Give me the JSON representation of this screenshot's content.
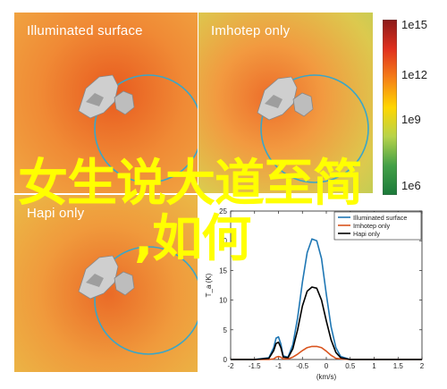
{
  "panels": [
    {
      "title": "Illuminated surface"
    },
    {
      "title": "Imhotep only"
    },
    {
      "title": "Hapi only"
    }
  ],
  "colorbar": {
    "ticks": [
      "1e15",
      "1e12",
      "1e9",
      "1e6"
    ],
    "colors": [
      "#8b1a1a",
      "#e0301e",
      "#f57f17",
      "#ffd600",
      "#b7d34a",
      "#43a047",
      "#1b7a3a"
    ]
  },
  "overlay": {
    "line1": "女生说大道至简",
    "line2": ",如何"
  },
  "chart_data": {
    "type": "line",
    "title": "",
    "xlabel": "(km/s)",
    "ylabel": "T_a (K)",
    "xlim": [
      -2,
      2
    ],
    "ylim": [
      0,
      25
    ],
    "x_ticks": [
      -2,
      -1.5,
      -1,
      -0.5,
      0,
      0.5,
      1,
      1.5,
      2
    ],
    "y_ticks": [
      0,
      5,
      10,
      15,
      20,
      25
    ],
    "legend_position": "top-right",
    "x": [
      -2,
      -1.5,
      -1.2,
      -1.1,
      -1.05,
      -1.0,
      -0.95,
      -0.9,
      -0.8,
      -0.7,
      -0.6,
      -0.5,
      -0.4,
      -0.3,
      -0.2,
      -0.1,
      0,
      0.1,
      0.2,
      0.3,
      0.5,
      1,
      1.5,
      2
    ],
    "series": [
      {
        "name": "Illuminated surface",
        "color": "#1f77b4",
        "values": [
          0,
          0,
          0.3,
          2.0,
          3.6,
          3.8,
          2.6,
          0.6,
          0.4,
          2.5,
          7.0,
          13.0,
          18.0,
          20.3,
          20.0,
          17.0,
          11.0,
          5.5,
          2.0,
          0.5,
          0,
          0,
          0,
          0
        ]
      },
      {
        "name": "Imhotep only",
        "color": "#d9541e",
        "values": [
          0,
          0,
          0,
          0.1,
          0.4,
          0.5,
          0.4,
          0.1,
          0.1,
          0.4,
          0.9,
          1.5,
          2.0,
          2.2,
          2.2,
          2.0,
          1.4,
          0.7,
          0.2,
          0.1,
          0,
          0,
          0,
          0
        ]
      },
      {
        "name": "Hapi only",
        "color": "#000000",
        "values": [
          0,
          0,
          0.2,
          1.5,
          2.7,
          2.9,
          2.0,
          0.4,
          0.3,
          1.8,
          5.0,
          9.0,
          11.5,
          12.2,
          12.0,
          10.0,
          6.5,
          3.3,
          1.2,
          0.3,
          0,
          0,
          0,
          0
        ]
      }
    ]
  }
}
